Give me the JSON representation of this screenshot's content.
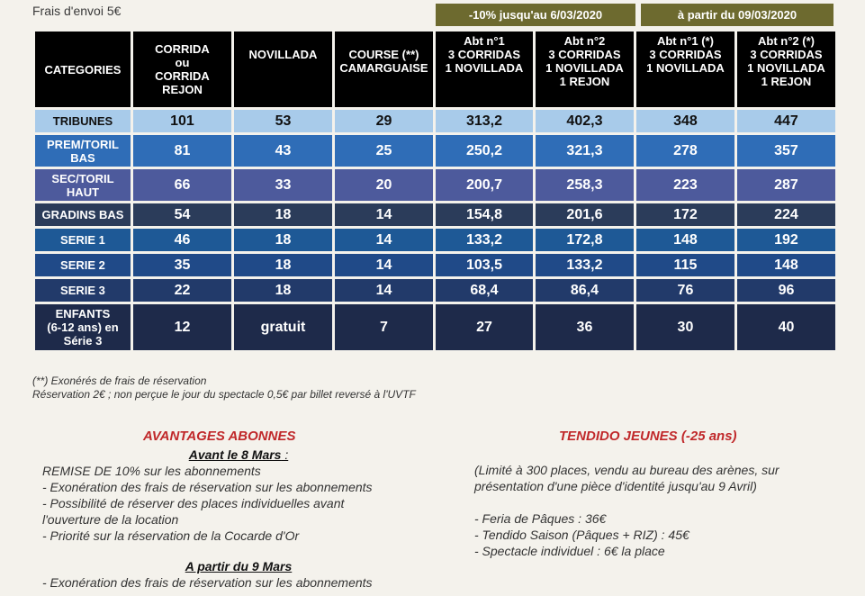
{
  "shipping": "Frais d'envoi  5€",
  "periods": {
    "early": "-10% jusqu'au 6/03/2020",
    "late": "à partir du 09/03/2020"
  },
  "headers": {
    "categories": "CATEGORIES",
    "corrida": [
      "CORRIDA",
      "ou",
      "CORRIDA",
      "REJON"
    ],
    "novillada": "NOVILLADA",
    "course": [
      "COURSE (**)",
      "CAMARGUAISE"
    ],
    "abt1_early": [
      "Abt n°1",
      "3 CORRIDAS",
      "1 NOVILLADA"
    ],
    "abt2_early": [
      "Abt n°2",
      "3 CORRIDAS",
      "1 NOVILLADA",
      "1 REJON"
    ],
    "abt1_late": [
      "Abt n°1 (*)",
      "3 CORRIDAS",
      "1 NOVILLADA"
    ],
    "abt2_late": [
      "Abt n°2 (*)",
      "3 CORRIDAS",
      "1 NOVILLADA",
      "1 REJON"
    ]
  },
  "rows": [
    {
      "cat": [
        "TRIBUNES"
      ],
      "v": [
        "101",
        "53",
        "29",
        "313,2",
        "402,3",
        "348",
        "447"
      ]
    },
    {
      "cat": [
        "PREM/TORIL",
        "BAS"
      ],
      "v": [
        "81",
        "43",
        "25",
        "250,2",
        "321,3",
        "278",
        "357"
      ]
    },
    {
      "cat": [
        "SEC/TORIL",
        "HAUT"
      ],
      "v": [
        "66",
        "33",
        "20",
        "200,7",
        "258,3",
        "223",
        "287"
      ]
    },
    {
      "cat": [
        "GRADINS BAS"
      ],
      "v": [
        "54",
        "18",
        "14",
        "154,8",
        "201,6",
        "172",
        "224"
      ]
    },
    {
      "cat": [
        "SERIE 1"
      ],
      "v": [
        "46",
        "18",
        "14",
        "133,2",
        "172,8",
        "148",
        "192"
      ]
    },
    {
      "cat": [
        "SERIE 2"
      ],
      "v": [
        "35",
        "18",
        "14",
        "103,5",
        "133,2",
        "115",
        "148"
      ]
    },
    {
      "cat": [
        "SERIE 3"
      ],
      "v": [
        "22",
        "18",
        "14",
        "68,4",
        "86,4",
        "76",
        "96"
      ]
    },
    {
      "cat": [
        "ENFANTS",
        "(6-12 ans) en",
        "Série 3"
      ],
      "v": [
        "12",
        "gratuit",
        "7",
        "27",
        "36",
        "30",
        "40"
      ]
    }
  ],
  "notes": {
    "line1": "(**) Exonérés de frais de réservation",
    "line2": "Réservation 2€ ; non perçue le jour du spectacle 0,5€ par billet reversé à l'UVTF"
  },
  "advantages": {
    "title": "AVANTAGES ABONNES",
    "before_heading": "Avant le 8 Mars",
    "before_colon": " :",
    "before_items": [
      "REMISE DE 10% sur les abonnements",
      "- Exonération des frais de réservation sur les abonnements",
      "- Possibilité de réserver des places individuelles avant",
      "l'ouverture de la location",
      "- Priorité sur la réservation de la Cocarde d'Or"
    ],
    "after_heading": "A partir du 9 Mars",
    "after_items": [
      "- Exonération des frais de réservation sur les abonnements"
    ]
  },
  "tendido": {
    "title": "TENDIDO JEUNES (-25 ans)",
    "intro": [
      "(Limité à 300 places, vendu au bureau des arènes, sur",
      "présentation d'une pièce d'identité jusqu'au 9 Avril)"
    ],
    "items": [
      "- Feria de Pâques : 36€",
      "- Tendido Saison (Pâques + RIZ) : 45€",
      "- Spectacle individuel : 6€ la place"
    ]
  }
}
